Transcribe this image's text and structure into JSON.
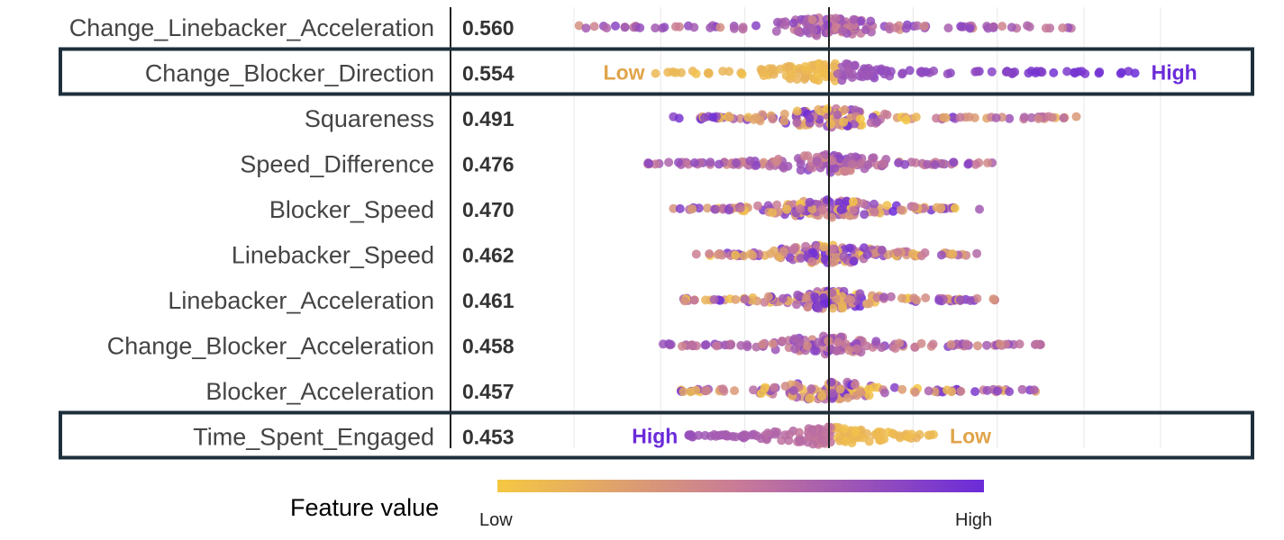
{
  "chart_data": {
    "type": "scatter",
    "subtype": "beeswarm",
    "features": [
      {
        "name": "Change_Linebacker_Acceleration",
        "importance": "0.560",
        "min": -0.98,
        "max": 0.95,
        "trend": "mixed",
        "highlighted": false,
        "annotation_left": "",
        "annotation_right": ""
      },
      {
        "name": "Change_Blocker_Direction",
        "importance": "0.554",
        "min": -0.68,
        "max": 1.2,
        "trend": "increasing",
        "highlighted": true,
        "annotation_left": "Low",
        "annotation_right": "High"
      },
      {
        "name": "Squareness",
        "importance": "0.491",
        "min": -0.61,
        "max": 0.97,
        "trend": "random",
        "highlighted": false,
        "annotation_left": "",
        "annotation_right": ""
      },
      {
        "name": "Speed_Difference",
        "importance": "0.476",
        "min": -0.71,
        "max": 0.64,
        "trend": "mixed",
        "highlighted": false,
        "annotation_left": "",
        "annotation_right": ""
      },
      {
        "name": "Blocker_Speed",
        "importance": "0.470",
        "min": -0.61,
        "max": 0.59,
        "trend": "random",
        "highlighted": false,
        "annotation_left": "",
        "annotation_right": ""
      },
      {
        "name": "Linebacker_Speed",
        "importance": "0.462",
        "min": -0.52,
        "max": 0.58,
        "trend": "random",
        "highlighted": false,
        "annotation_left": "",
        "annotation_right": ""
      },
      {
        "name": "Linebacker_Acceleration",
        "importance": "0.461",
        "min": -0.57,
        "max": 0.65,
        "trend": "random",
        "highlighted": false,
        "annotation_left": "",
        "annotation_right": ""
      },
      {
        "name": "Change_Blocker_Acceleration",
        "importance": "0.458",
        "min": -0.65,
        "max": 0.83,
        "trend": "mixed",
        "highlighted": false,
        "annotation_left": "",
        "annotation_right": ""
      },
      {
        "name": "Blocker_Acceleration",
        "importance": "0.457",
        "min": -0.58,
        "max": 0.81,
        "trend": "random",
        "highlighted": false,
        "annotation_left": "",
        "annotation_right": ""
      },
      {
        "name": "Time_Spent_Engaged",
        "importance": "0.453",
        "min": -0.55,
        "max": 0.41,
        "trend": "decreasing",
        "highlighted": true,
        "annotation_left": "High",
        "annotation_right": "Low"
      }
    ],
    "x_range": [
      -1.25,
      1.38
    ],
    "zero_line": 0,
    "grid": true,
    "legend": {
      "title": "Feature value",
      "low_label": "Low",
      "high_label": "High",
      "low_color": "#f5c842",
      "high_color": "#6b2bd9",
      "placement": "bottom"
    },
    "colors": {
      "low": "#f5c842",
      "high": "#6b2bd9",
      "annotation_low": "#e0a44a",
      "annotation_high": "#6b2bd9",
      "highlight_box": "#1e2f3c"
    }
  }
}
